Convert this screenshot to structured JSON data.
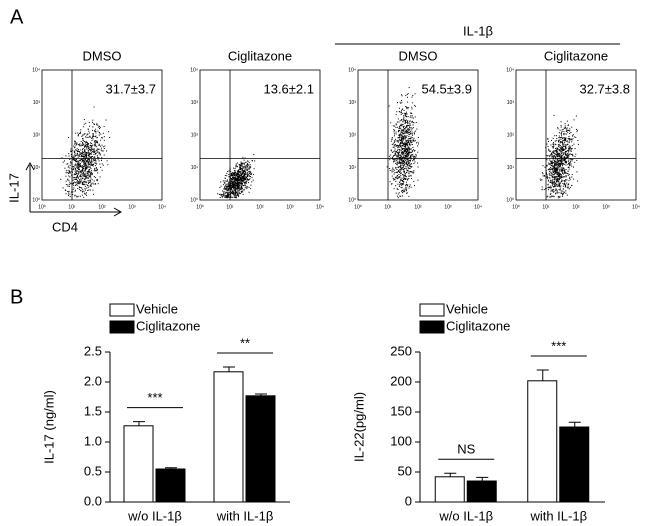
{
  "panel_a": {
    "label": "A",
    "group_label": "IL-1β",
    "y_label": "IL-17",
    "x_label": "CD4",
    "tick_labels": [
      "10⁰",
      "10¹",
      "10²",
      "10³",
      "10⁴"
    ],
    "plots": [
      {
        "title": "DMSO",
        "stat": "31.7±3.7"
      },
      {
        "title": "Ciglitazone",
        "stat": "13.6±2.1"
      },
      {
        "title": "DMSO",
        "stat": "54.5±3.9"
      },
      {
        "title": "Ciglitazone",
        "stat": "32.7±3.8"
      }
    ]
  },
  "panel_b": {
    "label": "B"
  },
  "chart_data": [
    {
      "type": "bar",
      "y_label": "IL-17 (ng/ml)",
      "categories": [
        "w/o IL-1β",
        "with IL-1β"
      ],
      "series": [
        {
          "name": "Vehicle",
          "color": "#ffffff",
          "values": [
            1.27,
            2.17
          ],
          "errors": [
            0.07,
            0.08
          ]
        },
        {
          "name": "Ciglitazone",
          "color": "#000000",
          "values": [
            0.55,
            1.77
          ],
          "errors": [
            0.02,
            0.03
          ]
        }
      ],
      "ylim": [
        0,
        2.5
      ],
      "yticks": [
        {
          "value": 0,
          "label": "0.0"
        },
        0.5,
        {
          "value": 1,
          "label": "1.0"
        },
        1.5,
        {
          "value": 2,
          "label": "2.0"
        },
        2.5
      ],
      "annotations": [
        {
          "text": "***",
          "category": 0
        },
        {
          "text": "**",
          "category": 1
        }
      ]
    },
    {
      "type": "bar",
      "y_label": "IL-22(pg/ml)",
      "categories": [
        "w/o IL-1β",
        "with IL-1β"
      ],
      "series": [
        {
          "name": "Vehicle",
          "color": "#ffffff",
          "values": [
            42,
            202
          ],
          "errors": [
            6,
            18
          ]
        },
        {
          "name": "Ciglitazone",
          "color": "#000000",
          "values": [
            35,
            125
          ],
          "errors": [
            6,
            8
          ]
        }
      ],
      "ylim": [
        0,
        250
      ],
      "yticks": [
        0,
        50,
        100,
        150,
        200,
        250
      ],
      "annotations": [
        {
          "text": "NS",
          "category": 0
        },
        {
          "text": "***",
          "category": 1
        }
      ]
    }
  ]
}
